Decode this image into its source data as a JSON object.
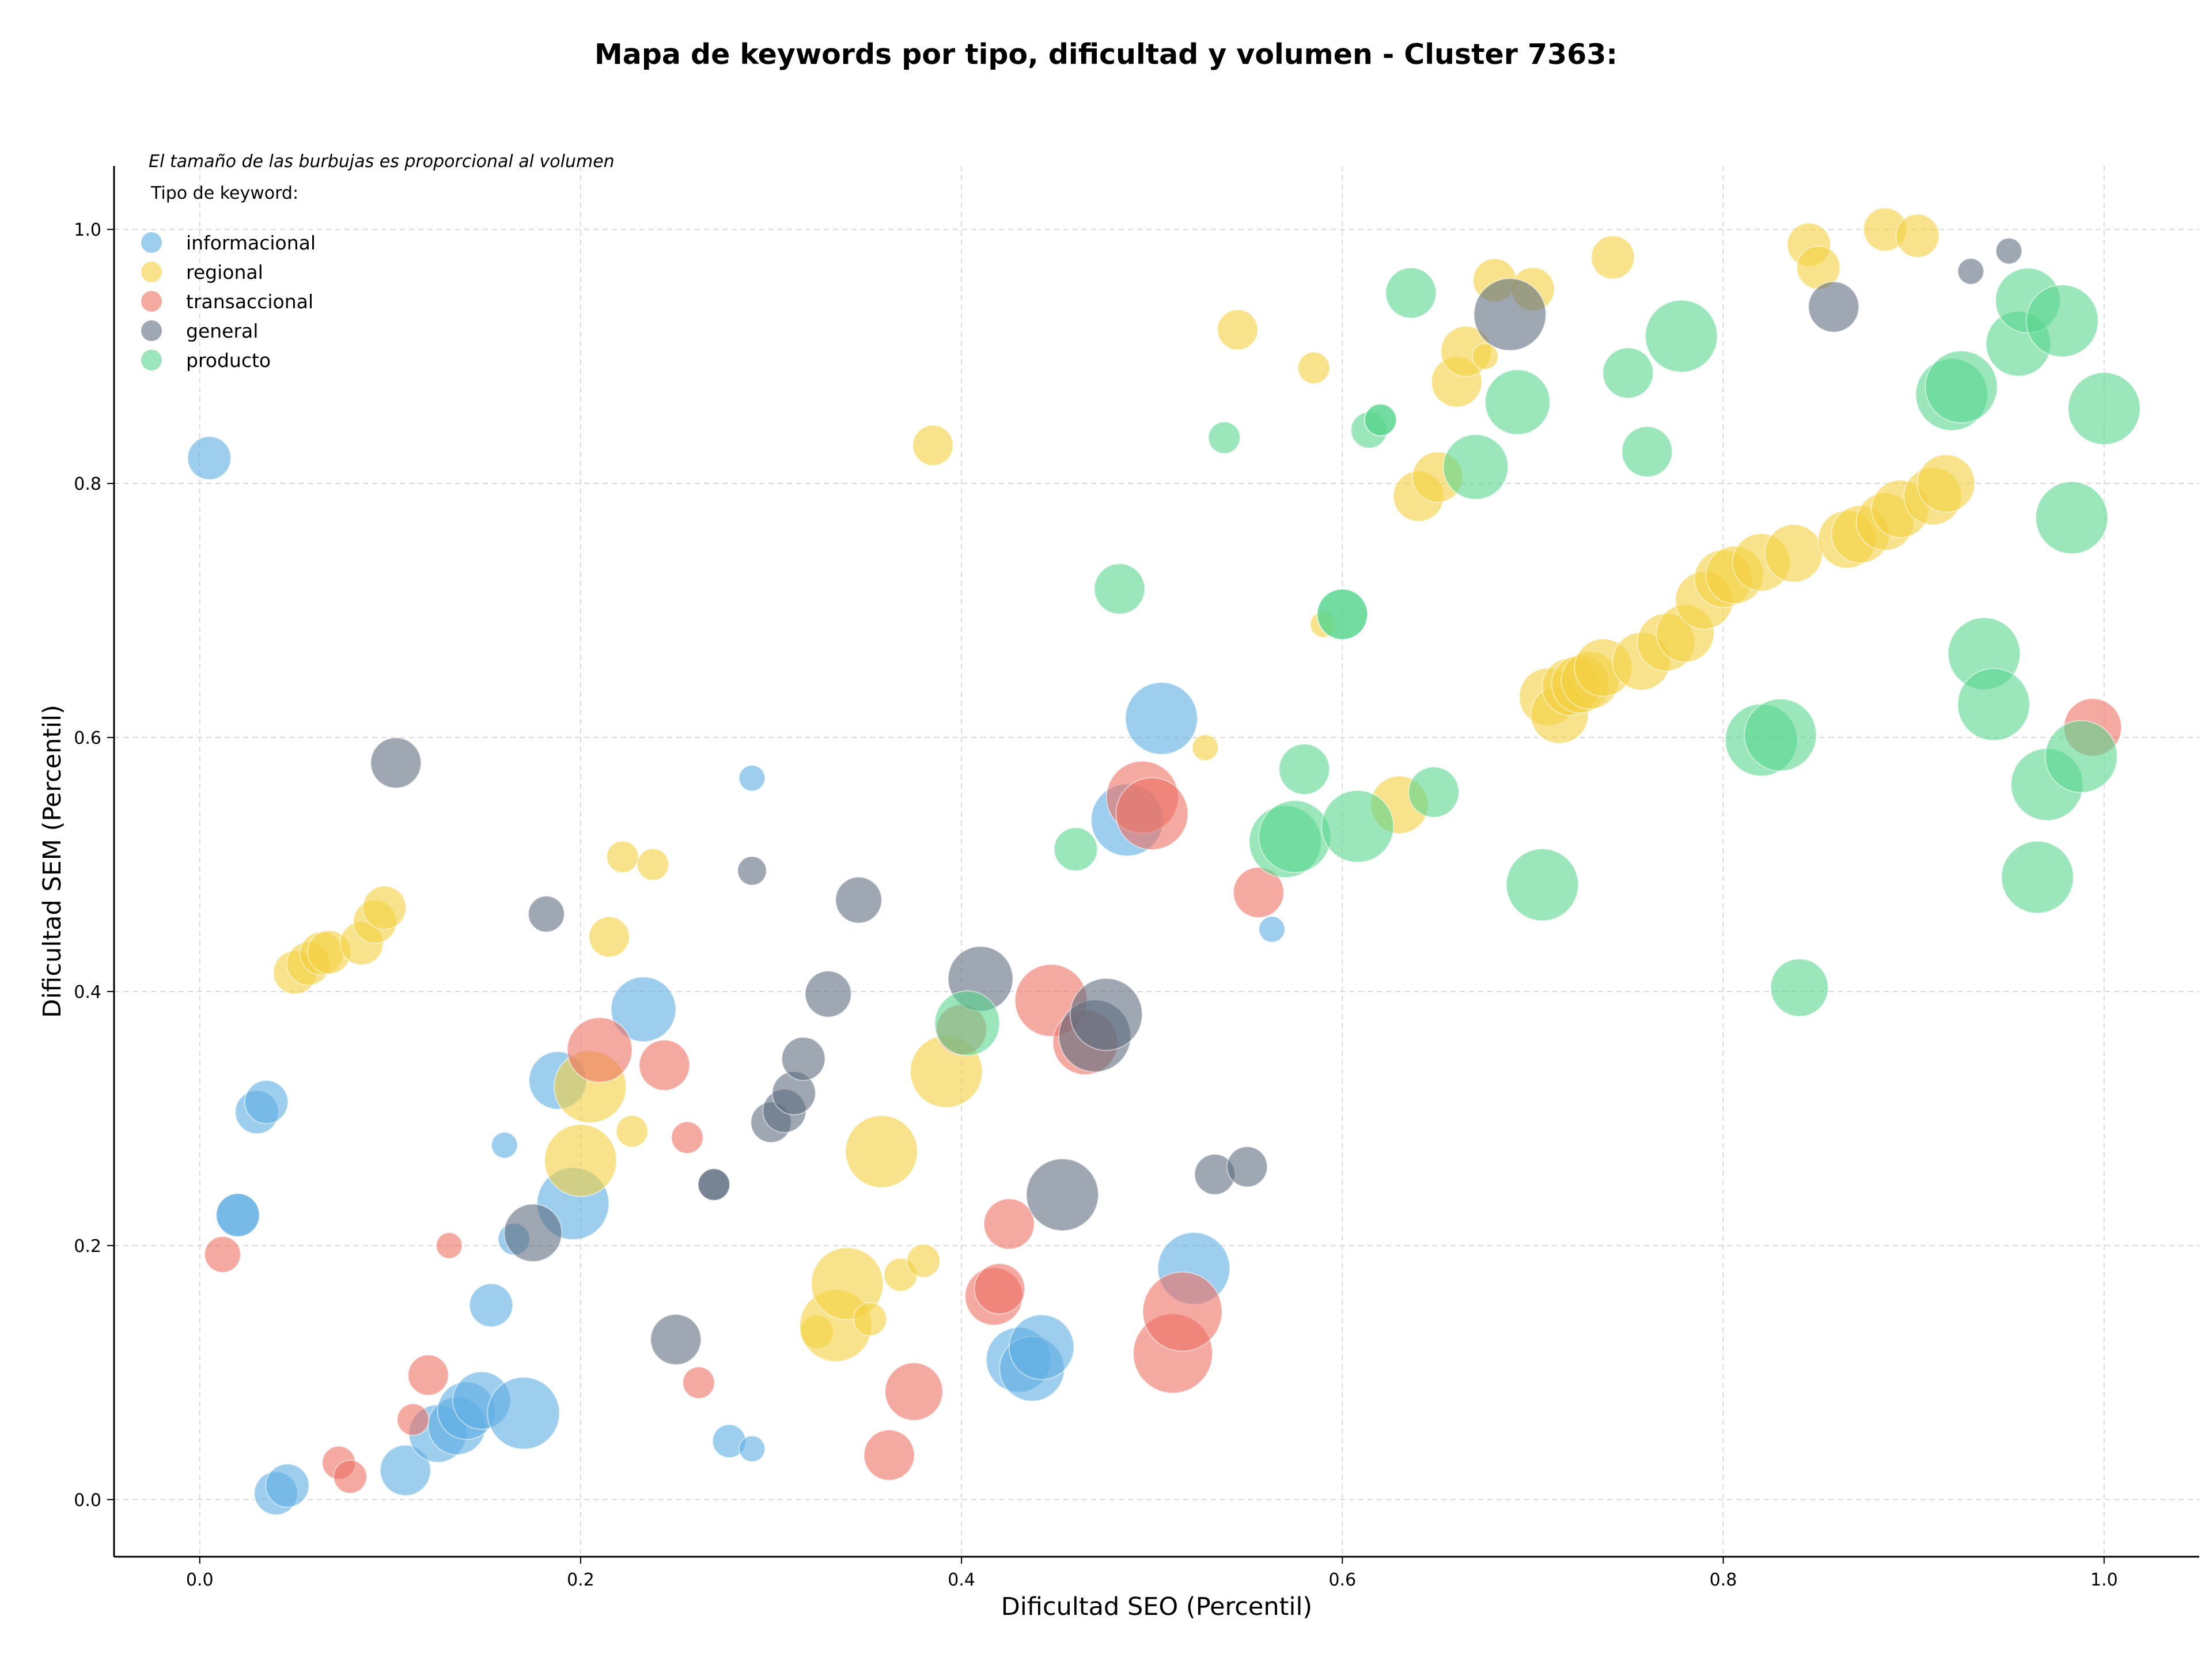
{
  "chart_data": {
    "type": "scatter",
    "title": "Mapa de keywords por tipo, dificultad y volumen - Cluster 7363:",
    "xlabel": "Dificultad SEO (Percentil)",
    "ylabel": "Dificultad SEM (Percentil)",
    "xlim": [
      -0.045,
      1.05
    ],
    "ylim": [
      -0.045,
      1.05
    ],
    "x_ticks": [
      "0.0",
      "0.2",
      "0.4",
      "0.6",
      "0.8",
      "1.0"
    ],
    "y_ticks": [
      "0.0",
      "0.2",
      "0.4",
      "0.6",
      "0.8",
      "1.0"
    ],
    "grid": true,
    "annotation": "El tamaño de las burbujas es proporcional al volumen",
    "legend_title": "Tipo de keyword:",
    "legend_position": "top-left",
    "series": [
      {
        "name": "informacional",
        "color": "#5dade2",
        "points": [
          [
            0.005,
            0.82,
            3
          ],
          [
            0.03,
            0.305,
            3
          ],
          [
            0.035,
            0.313,
            3
          ],
          [
            0.02,
            0.224,
            3
          ],
          [
            0.02,
            0.224,
            3
          ],
          [
            0.04,
            0.005,
            3
          ],
          [
            0.046,
            0.011,
            3
          ],
          [
            0.108,
            0.023,
            3.5
          ],
          [
            0.125,
            0.052,
            4
          ],
          [
            0.135,
            0.058,
            4
          ],
          [
            0.14,
            0.07,
            4
          ],
          [
            0.148,
            0.078,
            4
          ],
          [
            0.17,
            0.068,
            5
          ],
          [
            0.153,
            0.153,
            3
          ],
          [
            0.165,
            0.205,
            2.2
          ],
          [
            0.16,
            0.279,
            1.8
          ],
          [
            0.188,
            0.33,
            4
          ],
          [
            0.196,
            0.233,
            5
          ],
          [
            0.233,
            0.386,
            4.5
          ],
          [
            0.278,
            0.046,
            2.3
          ],
          [
            0.29,
            0.04,
            1.8
          ],
          [
            0.29,
            0.568,
            1.8
          ],
          [
            0.43,
            0.11,
            4.5
          ],
          [
            0.437,
            0.103,
            4.5
          ],
          [
            0.442,
            0.12,
            4.5
          ],
          [
            0.487,
            0.535,
            5
          ],
          [
            0.505,
            0.615,
            5
          ],
          [
            0.522,
            0.182,
            5
          ],
          [
            0.563,
            0.449,
            1.8
          ]
        ]
      },
      {
        "name": "regional",
        "color": "#f4d03f",
        "points": [
          [
            0.05,
            0.415,
            3
          ],
          [
            0.057,
            0.422,
            3
          ],
          [
            0.064,
            0.43,
            3
          ],
          [
            0.068,
            0.431,
            3
          ],
          [
            0.085,
            0.438,
            3
          ],
          [
            0.092,
            0.455,
            3
          ],
          [
            0.097,
            0.466,
            3
          ],
          [
            0.2,
            0.267,
            5
          ],
          [
            0.205,
            0.325,
            5
          ],
          [
            0.215,
            0.443,
            2.8
          ],
          [
            0.222,
            0.506,
            2.2
          ],
          [
            0.227,
            0.29,
            2.2
          ],
          [
            0.238,
            0.5,
            2.2
          ],
          [
            0.324,
            0.132,
            2.3
          ],
          [
            0.334,
            0.137,
            5
          ],
          [
            0.34,
            0.17,
            5
          ],
          [
            0.352,
            0.142,
            2.3
          ],
          [
            0.358,
            0.274,
            5
          ],
          [
            0.368,
            0.177,
            2.3
          ],
          [
            0.38,
            0.188,
            2.3
          ],
          [
            0.385,
            0.83,
            2.8
          ],
          [
            0.392,
            0.337,
            5
          ],
          [
            0.528,
            0.592,
            1.8
          ],
          [
            0.545,
            0.921,
            2.8
          ],
          [
            0.585,
            0.891,
            2.2
          ],
          [
            0.59,
            0.689,
            1.8
          ],
          [
            0.63,
            0.547,
            4
          ],
          [
            0.64,
            0.79,
            3.5
          ],
          [
            0.65,
            0.805,
            3.5
          ],
          [
            0.66,
            0.88,
            3.5
          ],
          [
            0.665,
            0.904,
            3.5
          ],
          [
            0.675,
            0.9,
            1.8
          ],
          [
            0.68,
            0.96,
            3
          ],
          [
            0.7,
            0.953,
            3
          ],
          [
            0.708,
            0.632,
            4
          ],
          [
            0.714,
            0.618,
            4
          ],
          [
            0.72,
            0.64,
            4
          ],
          [
            0.725,
            0.642,
            4
          ],
          [
            0.73,
            0.645,
            4
          ],
          [
            0.737,
            0.655,
            4
          ],
          [
            0.742,
            0.978,
            3
          ],
          [
            0.757,
            0.66,
            4
          ],
          [
            0.77,
            0.675,
            4
          ],
          [
            0.78,
            0.682,
            4
          ],
          [
            0.79,
            0.708,
            4
          ],
          [
            0.8,
            0.725,
            4
          ],
          [
            0.806,
            0.728,
            4
          ],
          [
            0.82,
            0.738,
            4
          ],
          [
            0.837,
            0.745,
            4
          ],
          [
            0.845,
            0.988,
            3
          ],
          [
            0.85,
            0.97,
            3
          ],
          [
            0.865,
            0.756,
            4
          ],
          [
            0.872,
            0.76,
            4
          ],
          [
            0.885,
            0.77,
            4
          ],
          [
            0.893,
            0.78,
            4
          ],
          [
            0.885,
            1.0,
            3
          ],
          [
            0.902,
            0.995,
            3
          ],
          [
            0.91,
            0.79,
            4
          ],
          [
            0.917,
            0.8,
            4
          ]
        ]
      },
      {
        "name": "transaccional",
        "color": "#ec7063",
        "points": [
          [
            0.012,
            0.193,
            2.5
          ],
          [
            0.073,
            0.029,
            2.3
          ],
          [
            0.079,
            0.018,
            2.3
          ],
          [
            0.112,
            0.063,
            2.2
          ],
          [
            0.12,
            0.098,
            2.8
          ],
          [
            0.131,
            0.2,
            1.8
          ],
          [
            0.21,
            0.354,
            4.5
          ],
          [
            0.244,
            0.342,
            3.5
          ],
          [
            0.256,
            0.285,
            2.2
          ],
          [
            0.262,
            0.092,
            2.2
          ],
          [
            0.362,
            0.035,
            3.5
          ],
          [
            0.375,
            0.085,
            4
          ],
          [
            0.4,
            0.37,
            3.5
          ],
          [
            0.417,
            0.16,
            4
          ],
          [
            0.42,
            0.166,
            3.5
          ],
          [
            0.425,
            0.217,
            3.5
          ],
          [
            0.447,
            0.393,
            5
          ],
          [
            0.465,
            0.36,
            4.5
          ],
          [
            0.495,
            0.553,
            5
          ],
          [
            0.5,
            0.54,
            5
          ],
          [
            0.511,
            0.115,
            5.5
          ],
          [
            0.516,
            0.148,
            5.5
          ],
          [
            0.556,
            0.478,
            3.5
          ],
          [
            0.994,
            0.608,
            4
          ]
        ]
      },
      {
        "name": "general",
        "color": "#5d6d7e",
        "points": [
          [
            0.103,
            0.58,
            3.5
          ],
          [
            0.175,
            0.21,
            4
          ],
          [
            0.182,
            0.461,
            2.5
          ],
          [
            0.25,
            0.126,
            3.5
          ],
          [
            0.27,
            0.248,
            2.2
          ],
          [
            0.27,
            0.248,
            2.2
          ],
          [
            0.29,
            0.495,
            2
          ],
          [
            0.3,
            0.297,
            2.8
          ],
          [
            0.307,
            0.306,
            3
          ],
          [
            0.312,
            0.32,
            3
          ],
          [
            0.317,
            0.347,
            3
          ],
          [
            0.33,
            0.398,
            3.2
          ],
          [
            0.346,
            0.472,
            3.2
          ],
          [
            0.41,
            0.41,
            4.5
          ],
          [
            0.453,
            0.24,
            5
          ],
          [
            0.47,
            0.365,
            5
          ],
          [
            0.476,
            0.382,
            5
          ],
          [
            0.533,
            0.256,
            2.8
          ],
          [
            0.55,
            0.262,
            2.8
          ],
          [
            0.688,
            0.933,
            5
          ],
          [
            0.858,
            0.939,
            3.5
          ],
          [
            0.93,
            0.967,
            1.8
          ],
          [
            0.95,
            0.983,
            1.8
          ]
        ]
      },
      {
        "name": "producto",
        "color": "#58d68d",
        "points": [
          [
            0.403,
            0.375,
            4.5
          ],
          [
            0.46,
            0.512,
            3
          ],
          [
            0.483,
            0.717,
            3.5
          ],
          [
            0.538,
            0.836,
            2.2
          ],
          [
            0.57,
            0.518,
            5
          ],
          [
            0.575,
            0.522,
            5
          ],
          [
            0.58,
            0.575,
            3.5
          ],
          [
            0.6,
            0.697,
            3.5
          ],
          [
            0.6,
            0.697,
            3.5
          ],
          [
            0.608,
            0.53,
            5
          ],
          [
            0.614,
            0.842,
            2.5
          ],
          [
            0.62,
            0.85,
            2.2
          ],
          [
            0.62,
            0.85,
            2.2
          ],
          [
            0.636,
            0.95,
            3.5
          ],
          [
            0.648,
            0.557,
            3.5
          ],
          [
            0.67,
            0.813,
            4.5
          ],
          [
            0.692,
            0.864,
            4.5
          ],
          [
            0.705,
            0.484,
            5
          ],
          [
            0.75,
            0.887,
            3.5
          ],
          [
            0.76,
            0.825,
            3.5
          ],
          [
            0.778,
            0.916,
            5
          ],
          [
            0.82,
            0.598,
            5
          ],
          [
            0.83,
            0.602,
            5
          ],
          [
            0.84,
            0.403,
            4
          ],
          [
            0.92,
            0.87,
            5
          ],
          [
            0.925,
            0.876,
            5
          ],
          [
            0.955,
            0.91,
            4.5
          ],
          [
            0.96,
            0.944,
            4.5
          ],
          [
            0.978,
            0.928,
            5
          ],
          [
            1.0,
            0.859,
            5
          ],
          [
            0.937,
            0.666,
            5
          ],
          [
            0.942,
            0.626,
            5
          ],
          [
            0.965,
            0.49,
            5
          ],
          [
            0.97,
            0.563,
            5
          ],
          [
            0.983,
            0.773,
            5
          ],
          [
            0.988,
            0.585,
            5
          ]
        ]
      }
    ]
  }
}
